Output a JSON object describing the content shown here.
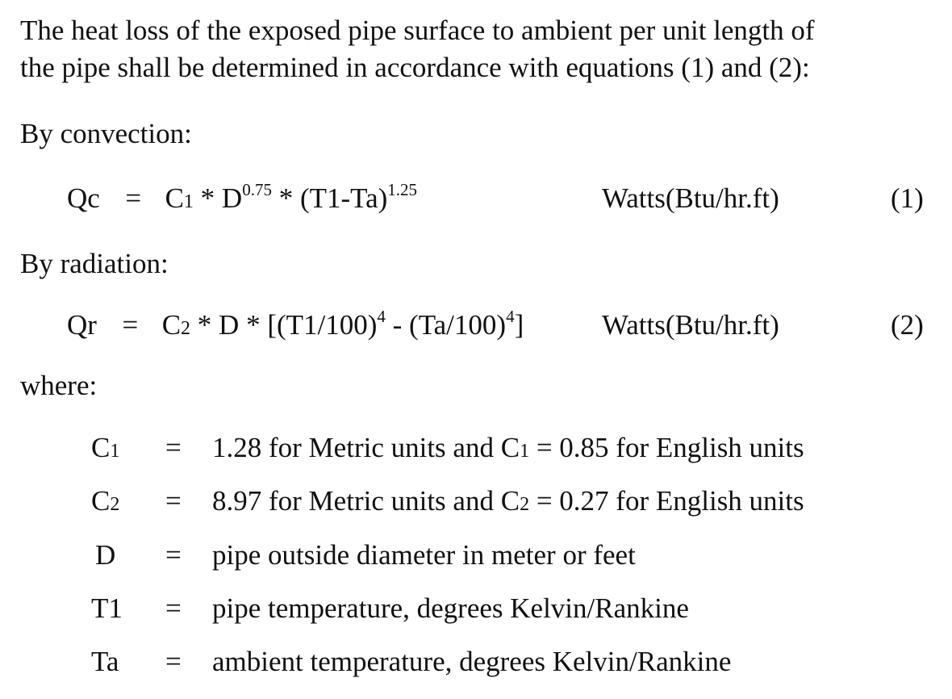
{
  "intro": {
    "line1": "The heat loss of the exposed pipe surface to ambient per unit length of",
    "line2": "the pipe shall be determined in accordance with equations (1) and (2):"
  },
  "convection": {
    "heading": "By convection:",
    "lhs": "Qc",
    "eq_sign": "=",
    "c": "C",
    "c_sub": "1",
    "times1": " * D",
    "d_exp": "0.75",
    "times2": " * (T1-Ta)",
    "t_exp": "1.25",
    "units": "Watts(Btu/hr.ft)",
    "number": "(1)"
  },
  "radiation": {
    "heading": "By radiation:",
    "lhs": "Qr",
    "eq_sign": "=",
    "c": "C",
    "c_sub": "2",
    "body1": " * D * [(T1/100)",
    "exp1": "4",
    "body2": " - (Ta/100)",
    "exp2": "4",
    "body3": "]",
    "units": "Watts(Btu/hr.ft)",
    "number": "(2)"
  },
  "where": "where:",
  "definitions": [
    {
      "symbol": "C",
      "symbol_sub": "1",
      "eq": "=",
      "text1": "1.28 for Metric units and C",
      "text_sub": "1",
      "text2": " = 0.85 for English units"
    },
    {
      "symbol": "C",
      "symbol_sub": "2",
      "eq": "=",
      "text1": "8.97 for Metric units and C",
      "text_sub": "2",
      "text2": " = 0.27 for English units"
    },
    {
      "symbol": "D",
      "symbol_sub": "",
      "eq": "=",
      "text1": "pipe outside diameter in meter or feet",
      "text_sub": "",
      "text2": ""
    },
    {
      "symbol": "T1",
      "symbol_sub": "",
      "eq": "=",
      "text1": "pipe temperature, degrees Kelvin/Rankine",
      "text_sub": "",
      "text2": ""
    },
    {
      "symbol": "Ta",
      "symbol_sub": "",
      "eq": "=",
      "text1": "ambient temperature, degrees Kelvin/Rankine",
      "text_sub": "",
      "text2": ""
    }
  ]
}
